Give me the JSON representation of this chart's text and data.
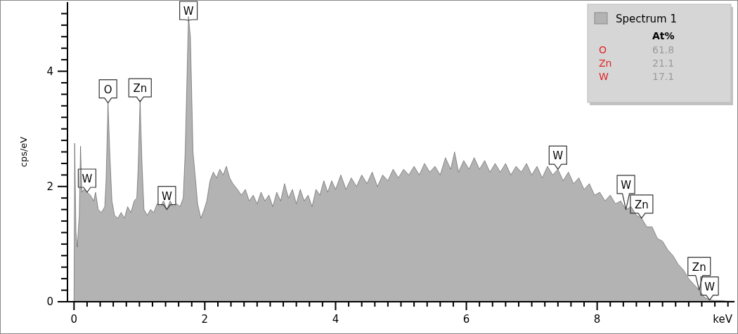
{
  "chart_data": {
    "type": "area",
    "ylabel": "cps/eV",
    "xlabel": "keV",
    "legend": "top right",
    "grid": false,
    "xlim": [
      -0.1,
      10.1
    ],
    "ylim": [
      0,
      5.2
    ],
    "xticks": [
      0,
      {
        "value": 0.2,
        "label": null
      },
      {
        "value": 0.4,
        "label": null
      },
      {
        "value": 0.6,
        "label": null
      },
      {
        "value": 0.8,
        "label": null
      },
      {
        "value": 1,
        "label": null
      },
      {
        "value": 1.2,
        "label": null
      },
      {
        "value": 1.4,
        "label": null
      },
      {
        "value": 1.6,
        "label": null
      },
      {
        "value": 1.8,
        "label": null
      },
      2,
      {
        "value": 2.2,
        "label": null
      },
      {
        "value": 2.4,
        "label": null
      },
      {
        "value": 2.6,
        "label": null
      },
      {
        "value": 2.8,
        "label": null
      },
      {
        "value": 3,
        "label": null
      },
      {
        "value": 3.2,
        "label": null
      },
      {
        "value": 3.4,
        "label": null
      },
      {
        "value": 3.6,
        "label": null
      },
      {
        "value": 3.8,
        "label": null
      },
      4,
      {
        "value": 4.2,
        "label": null
      },
      {
        "value": 4.4,
        "label": null
      },
      {
        "value": 4.6,
        "label": null
      },
      {
        "value": 4.8,
        "label": null
      },
      {
        "value": 5,
        "label": null
      },
      {
        "value": 5.2,
        "label": null
      },
      {
        "value": 5.4,
        "label": null
      },
      {
        "value": 5.6,
        "label": null
      },
      {
        "value": 5.8,
        "label": null
      },
      6,
      {
        "value": 6.2,
        "label": null
      },
      {
        "value": 6.4,
        "label": null
      },
      {
        "value": 6.6,
        "label": null
      },
      {
        "value": 6.8,
        "label": null
      },
      {
        "value": 7,
        "label": null
      },
      {
        "value": 7.2,
        "label": null
      },
      {
        "value": 7.4,
        "label": null
      },
      {
        "value": 7.6,
        "label": null
      },
      {
        "value": 7.8,
        "label": null
      },
      8,
      {
        "value": 8.2,
        "label": null
      },
      {
        "value": 8.4,
        "label": null
      },
      {
        "value": 8.6,
        "label": null
      },
      {
        "value": 8.8,
        "label": null
      },
      {
        "value": 9,
        "label": null
      },
      {
        "value": 9.2,
        "label": null
      },
      {
        "value": 9.4,
        "label": null
      },
      {
        "value": 9.6,
        "label": null
      },
      {
        "value": 9.8,
        "label": null
      },
      {
        "value": 10,
        "label": null
      }
    ],
    "yticks": [
      0,
      {
        "value": 0.2,
        "label": null
      },
      {
        "value": 0.4,
        "label": null
      },
      {
        "value": 0.6,
        "label": null
      },
      {
        "value": 0.8,
        "label": null
      },
      {
        "value": 1,
        "label": null
      },
      {
        "value": 1.2,
        "label": null
      },
      {
        "value": 1.4,
        "label": null
      },
      {
        "value": 1.6,
        "label": null
      },
      {
        "value": 1.8,
        "label": null
      },
      2,
      {
        "value": 2.2,
        "label": null
      },
      {
        "value": 2.4,
        "label": null
      },
      {
        "value": 2.6,
        "label": null
      },
      {
        "value": 2.8,
        "label": null
      },
      {
        "value": 3,
        "label": null
      },
      {
        "value": 3.2,
        "label": null
      },
      {
        "value": 3.4,
        "label": null
      },
      {
        "value": 3.6,
        "label": null
      },
      {
        "value": 3.8,
        "label": null
      },
      4,
      {
        "value": 4.2,
        "label": null
      },
      {
        "value": 4.4,
        "label": null
      },
      {
        "value": 4.6,
        "label": null
      },
      {
        "value": 4.8,
        "label": null
      },
      {
        "value": 5,
        "label": null
      }
    ],
    "series": [
      {
        "name": "Spectrum 1",
        "color": "#b3b3b3",
        "x": [
          -0.05,
          0,
          0.01,
          0.03,
          0.05,
          0.08,
          0.1,
          0.12,
          0.15,
          0.2,
          0.25,
          0.3,
          0.33,
          0.37,
          0.42,
          0.47,
          0.49,
          0.52,
          0.55,
          0.58,
          0.62,
          0.67,
          0.72,
          0.77,
          0.82,
          0.87,
          0.92,
          0.96,
          0.98,
          1.01,
          1.04,
          1.07,
          1.12,
          1.17,
          1.22,
          1.27,
          1.32,
          1.37,
          1.42,
          1.47,
          1.52,
          1.57,
          1.62,
          1.67,
          1.7,
          1.75,
          1.78,
          1.82,
          1.86,
          1.89,
          1.94,
          1.99,
          2.03,
          2.08,
          2.13,
          2.18,
          2.23,
          2.28,
          2.33,
          2.38,
          2.43,
          2.5,
          2.56,
          2.62,
          2.68,
          2.74,
          2.8,
          2.86,
          2.92,
          2.98,
          3.04,
          3.1,
          3.16,
          3.22,
          3.28,
          3.34,
          3.4,
          3.46,
          3.52,
          3.58,
          3.64,
          3.7,
          3.76,
          3.82,
          3.88,
          3.94,
          4,
          4.08,
          4.16,
          4.24,
          4.32,
          4.4,
          4.48,
          4.56,
          4.64,
          4.72,
          4.8,
          4.88,
          4.96,
          5.04,
          5.12,
          5.2,
          5.28,
          5.36,
          5.44,
          5.52,
          5.6,
          5.68,
          5.76,
          5.82,
          5.88,
          5.96,
          6.04,
          6.12,
          6.2,
          6.28,
          6.36,
          6.44,
          6.52,
          6.6,
          6.68,
          6.76,
          6.84,
          6.92,
          7,
          7.08,
          7.16,
          7.24,
          7.32,
          7.4,
          7.48,
          7.56,
          7.64,
          7.72,
          7.8,
          7.88,
          7.96,
          8.04,
          8.12,
          8.2,
          8.28,
          8.36,
          8.44,
          8.52,
          8.6,
          8.68,
          8.76,
          8.84,
          8.92,
          9,
          9.08,
          9.16,
          9.24,
          9.32,
          9.4,
          9.48,
          9.56,
          9.64,
          9.72,
          9.8,
          9.9,
          10,
          10.1
        ],
        "values": [
          0,
          0,
          2.75,
          1.2,
          0.95,
          1.5,
          2.7,
          1.9,
          1.95,
          1.9,
          1.85,
          1.75,
          1.9,
          1.6,
          1.55,
          1.65,
          2.1,
          3.45,
          2.5,
          1.75,
          1.5,
          1.45,
          1.55,
          1.45,
          1.65,
          1.55,
          1.75,
          1.8,
          2.3,
          3.5,
          2.4,
          1.6,
          1.5,
          1.6,
          1.55,
          1.7,
          1.65,
          1.75,
          1.6,
          1.75,
          1.65,
          1.7,
          1.65,
          1.8,
          2.6,
          4.95,
          4.6,
          2.6,
          2.1,
          1.7,
          1.45,
          1.6,
          1.75,
          2.1,
          2.25,
          2.15,
          2.3,
          2.2,
          2.35,
          2.15,
          2.05,
          1.95,
          1.85,
          1.95,
          1.75,
          1.85,
          1.7,
          1.9,
          1.75,
          1.85,
          1.65,
          1.9,
          1.75,
          2.05,
          1.8,
          1.95,
          1.7,
          1.95,
          1.75,
          1.85,
          1.65,
          1.95,
          1.85,
          2.1,
          1.9,
          2.1,
          1.95,
          2.2,
          1.95,
          2.15,
          2,
          2.2,
          2.05,
          2.25,
          2,
          2.2,
          2.1,
          2.3,
          2.15,
          2.3,
          2.2,
          2.35,
          2.2,
          2.4,
          2.25,
          2.35,
          2.2,
          2.5,
          2.3,
          2.6,
          2.25,
          2.45,
          2.3,
          2.5,
          2.3,
          2.45,
          2.25,
          2.4,
          2.25,
          2.4,
          2.2,
          2.35,
          2.25,
          2.4,
          2.2,
          2.35,
          2.15,
          2.35,
          2.2,
          2.3,
          2.1,
          2.25,
          2.05,
          2.15,
          1.95,
          2.05,
          1.85,
          1.9,
          1.75,
          1.85,
          1.7,
          1.75,
          1.6,
          1.65,
          1.5,
          1.45,
          1.3,
          1.3,
          1.1,
          1.05,
          0.9,
          0.8,
          0.65,
          0.55,
          0.4,
          0.3,
          0.2,
          0.08,
          0.03,
          0.02,
          0.02,
          0.01,
          0.01
        ]
      }
    ],
    "annotations": [
      "At%",
      "O",
      "61.8",
      "Zn",
      "21.1",
      "W",
      "17.1",
      {
        "text": "W",
        "x": 0.2,
        "y": 1.9
      },
      {
        "text": "O",
        "x": 0.52,
        "y": 3.45
      },
      {
        "text": "Zn",
        "x": 1.01,
        "y": 3.47
      },
      {
        "text": "W",
        "x": 1.42,
        "y": 1.6
      },
      {
        "text": "W",
        "x": 1.75,
        "y": 4.95
      },
      {
        "text": "W",
        "x": 7.4,
        "y": 2.3
      },
      {
        "text": "W",
        "x": 8.44,
        "y": 1.6
      },
      {
        "text": "Zn",
        "x": 8.68,
        "y": 1.45
      },
      {
        "text": "Zn",
        "x": 9.56,
        "y": 0.2
      },
      {
        "text": "W",
        "x": 9.72,
        "y": 0.03
      }
    ]
  }
}
